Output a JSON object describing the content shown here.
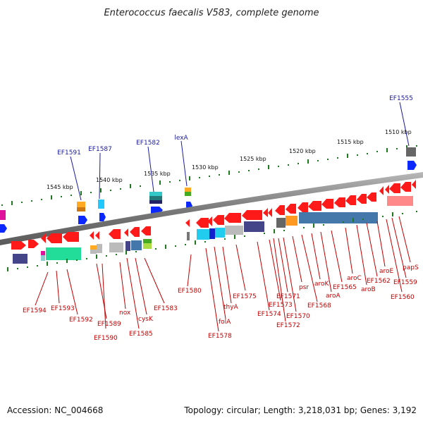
{
  "title": "Enterococcus faecalis V583, complete genome",
  "footer": {
    "accession": "Accession: NC_004668",
    "summary": "Topology: circular; Length: 3,218,031 bp; Genes: 3,192"
  },
  "colors": {
    "forward_gene": "#ff1a1a",
    "reverse_gene": "#ff1a1a",
    "label_red": "#c00000",
    "label_blue": "#1a1aa0",
    "backbone": "#808080",
    "tick": "#1f7a1f",
    "blue_marker": "#0a28ff"
  },
  "kbp_ticks": [
    {
      "id": "t1545",
      "label": "1545 kbp"
    },
    {
      "id": "t1540",
      "label": "1540 kbp"
    },
    {
      "id": "t1535",
      "label": "1535 kbp"
    },
    {
      "id": "t1530",
      "label": "1530 kbp"
    },
    {
      "id": "t1525",
      "label": "1525 kbp"
    },
    {
      "id": "t1520",
      "label": "1520 kbp"
    },
    {
      "id": "t1515",
      "label": "1515 kbp"
    },
    {
      "id": "t1510",
      "label": "1510 kbp"
    }
  ],
  "outer_labels": [
    {
      "id": "EF1591",
      "text": "EF1591"
    },
    {
      "id": "EF1587",
      "text": "EF1587"
    },
    {
      "id": "EF1582",
      "text": "EF1582"
    },
    {
      "id": "lexA",
      "text": "lexA"
    },
    {
      "id": "EF1555",
      "text": "EF1555"
    }
  ],
  "inner_labels": [
    {
      "id": "EF1594",
      "text": "EF1594"
    },
    {
      "id": "EF1593",
      "text": "EF1593"
    },
    {
      "id": "EF1592",
      "text": "EF1592"
    },
    {
      "id": "EF1589",
      "text": "EF1589"
    },
    {
      "id": "EF1590",
      "text": "EF1590"
    },
    {
      "id": "nox",
      "text": "nox"
    },
    {
      "id": "EF1585",
      "text": "EF1585"
    },
    {
      "id": "cysK",
      "text": "cysK"
    },
    {
      "id": "EF1583",
      "text": "EF1583"
    },
    {
      "id": "EF1580",
      "text": "EF1580"
    },
    {
      "id": "EF1578",
      "text": "EF1578"
    },
    {
      "id": "folA",
      "text": "folA"
    },
    {
      "id": "thyA",
      "text": "thyA"
    },
    {
      "id": "EF1575",
      "text": "EF1575"
    },
    {
      "id": "EF1574",
      "text": "EF1574"
    },
    {
      "id": "EF1573",
      "text": "EF1573"
    },
    {
      "id": "EF1572",
      "text": "EF1572"
    },
    {
      "id": "EF1571",
      "text": "EF1571"
    },
    {
      "id": "EF1570",
      "text": "EF1570"
    },
    {
      "id": "psr",
      "text": "psr"
    },
    {
      "id": "EF1568",
      "text": "EF1568"
    },
    {
      "id": "aroK",
      "text": "aroK"
    },
    {
      "id": "aroA",
      "text": "aroA"
    },
    {
      "id": "EF1565",
      "text": "EF1565"
    },
    {
      "id": "aroC",
      "text": "aroC"
    },
    {
      "id": "aroB",
      "text": "aroB"
    },
    {
      "id": "EF1562",
      "text": "EF1562"
    },
    {
      "id": "aroE",
      "text": "aroE"
    },
    {
      "id": "EF1560",
      "text": "EF1560"
    },
    {
      "id": "EF1559",
      "text": "EF1559"
    },
    {
      "id": "papS",
      "text": "papS"
    }
  ]
}
